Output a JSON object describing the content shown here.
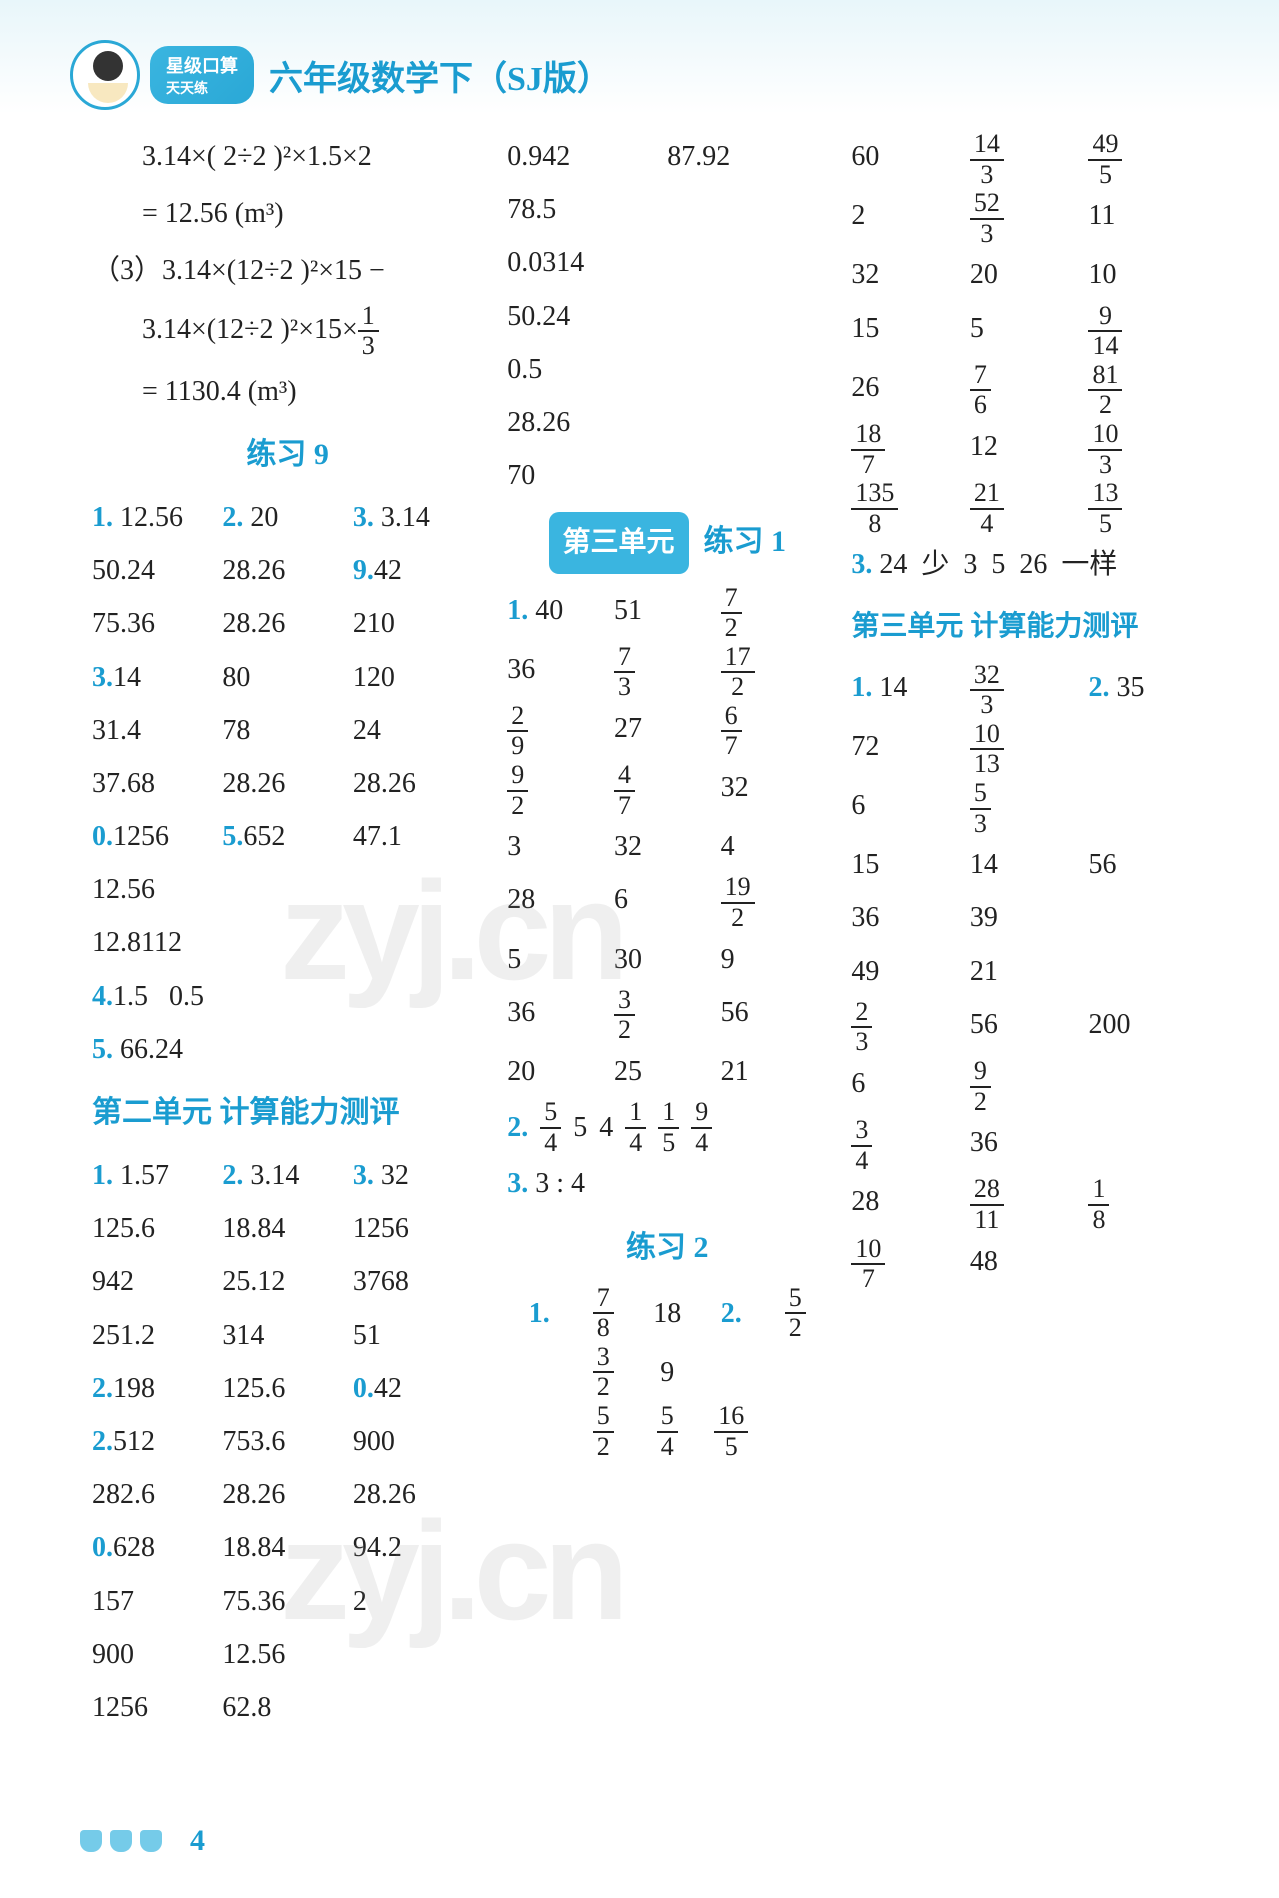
{
  "header": {
    "badge_line1": "星级口算",
    "badge_line2": "天天练",
    "title": "六年级数学下（SJ版）"
  },
  "col1": {
    "eq1": "3.14×( 2÷2 )²×1.5×2",
    "eq1r": "= 12.56 (m³)",
    "eq2_label": "（3）",
    "eq2": "3.14×(12÷2 )²×15 −",
    "eq3": "3.14×(12÷2 )²×15×",
    "eq3_frac_n": "1",
    "eq3_frac_d": "3",
    "eq3r": "= 1130.4 (m³)",
    "section9": "练习 9",
    "p9_line1": [
      "1. 12.56",
      "2. 20",
      "3. 3.14"
    ],
    "p9_rows": [
      [
        "50.24",
        "28.26",
        "9.42"
      ],
      [
        "75.36",
        "28.26",
        "210"
      ],
      [
        "3.14",
        "80",
        "120"
      ],
      [
        "31.4",
        "78",
        "24"
      ],
      [
        "37.68",
        "28.26",
        "28.26"
      ],
      [
        "0.1256",
        "5.652",
        "47.1"
      ]
    ],
    "p9_single": [
      "12.56",
      "12.8112"
    ],
    "p9_q4": "4.1.5   0.5",
    "p9_q5": "5. 66.24",
    "unit2_title": "第二单元 计算能力测评",
    "u2_line1": [
      "1. 1.57",
      "2. 3.14",
      "3. 32"
    ],
    "u2_rows": [
      [
        "125.6",
        "18.84",
        "1256"
      ],
      [
        "942",
        "25.12",
        "3768"
      ],
      [
        "251.2",
        "314",
        "51"
      ],
      [
        "2.198",
        "125.6",
        "0.42"
      ],
      [
        "2.512",
        "753.6",
        "900"
      ],
      [
        "282.6",
        "28.26",
        "28.26"
      ],
      [
        "0.628",
        "18.84",
        "94.2"
      ],
      [
        "157",
        "75.36",
        "2"
      ],
      [
        "900",
        "12.56",
        ""
      ],
      [
        "1256",
        "62.8",
        ""
      ]
    ]
  },
  "col2": {
    "top_vals": [
      "0.942",
      "87.92",
      "78.5",
      "0.0314",
      "50.24",
      "0.5",
      "28.26",
      "70"
    ],
    "unit3_badge": "第三单元",
    "unit3_after": "练习 1",
    "p1_rows": [
      [
        "1. 40",
        "51",
        {
          "n": "7",
          "d": "2"
        }
      ],
      [
        "36",
        {
          "n": "7",
          "d": "3"
        },
        {
          "n": "17",
          "d": "2"
        }
      ],
      [
        {
          "n": "2",
          "d": "9"
        },
        "27",
        {
          "n": "6",
          "d": "7"
        }
      ],
      [
        {
          "n": "9",
          "d": "2"
        },
        {
          "n": "4",
          "d": "7"
        },
        "32"
      ],
      [
        "3",
        "32",
        "4"
      ],
      [
        "28",
        "6",
        {
          "n": "19",
          "d": "2"
        }
      ],
      [
        "5",
        "30",
        "9"
      ],
      [
        "36",
        {
          "n": "3",
          "d": "2"
        },
        "56"
      ],
      [
        "20",
        "25",
        "21"
      ]
    ],
    "p1_q2_prefix": "2.",
    "p1_q2_vals": [
      {
        "n": "5",
        "d": "4"
      },
      "5",
      "4",
      {
        "n": "1",
        "d": "4"
      },
      {
        "n": "1",
        "d": "5"
      },
      {
        "n": "9",
        "d": "4"
      }
    ],
    "p1_q3": "3. 3 : 4",
    "section2": "练习 2",
    "p2_rows": [
      [
        "1.",
        {
          "n": "7",
          "d": "8"
        },
        "18",
        "2.",
        {
          "n": "5",
          "d": "2"
        }
      ],
      [
        "",
        {
          "n": "3",
          "d": "2"
        },
        "9",
        "",
        ""
      ],
      [
        "",
        {
          "n": "5",
          "d": "2"
        },
        {
          "n": "5",
          "d": "4"
        },
        {
          "n": "16",
          "d": "5"
        },
        ""
      ]
    ]
  },
  "col3": {
    "top_rows": [
      [
        "60",
        {
          "n": "14",
          "d": "3"
        },
        {
          "n": "49",
          "d": "5"
        }
      ],
      [
        "2",
        {
          "n": "52",
          "d": "3"
        },
        "11"
      ],
      [
        "32",
        "20",
        "10"
      ],
      [
        "15",
        "5",
        {
          "n": "9",
          "d": "14"
        }
      ],
      [
        "26",
        {
          "n": "7",
          "d": "6"
        },
        {
          "n": "81",
          "d": "2"
        }
      ],
      [
        {
          "n": "18",
          "d": "7"
        },
        "12",
        {
          "n": "10",
          "d": "3"
        }
      ],
      [
        {
          "n": "135",
          "d": "8"
        },
        {
          "n": "21",
          "d": "4"
        },
        {
          "n": "13",
          "d": "5"
        }
      ]
    ],
    "q3": "3. 24   少   3   5   26   一样",
    "unit3_eval": "第三单元 计算能力测评",
    "eval_rows": [
      [
        "1. 14",
        {
          "n": "32",
          "d": "3"
        },
        "2. 35"
      ],
      [
        "72",
        {
          "n": "10",
          "d": "13"
        },
        ""
      ],
      [
        "6",
        {
          "n": "5",
          "d": "3"
        },
        ""
      ],
      [
        "15",
        "14",
        "56"
      ],
      [
        "36",
        "39",
        ""
      ],
      [
        "49",
        "21",
        ""
      ],
      [
        {
          "n": "2",
          "d": "3"
        },
        "56",
        "200"
      ],
      [
        "6",
        {
          "n": "9",
          "d": "2"
        },
        ""
      ],
      [
        {
          "n": "3",
          "d": "4"
        },
        "36",
        ""
      ],
      [
        "28",
        {
          "n": "28",
          "d": "11"
        },
        {
          "n": "1",
          "d": "8"
        }
      ],
      [
        {
          "n": "10",
          "d": "7"
        },
        "48",
        ""
      ]
    ]
  },
  "footer": {
    "page": "4"
  },
  "watermark": "zyj.cn"
}
